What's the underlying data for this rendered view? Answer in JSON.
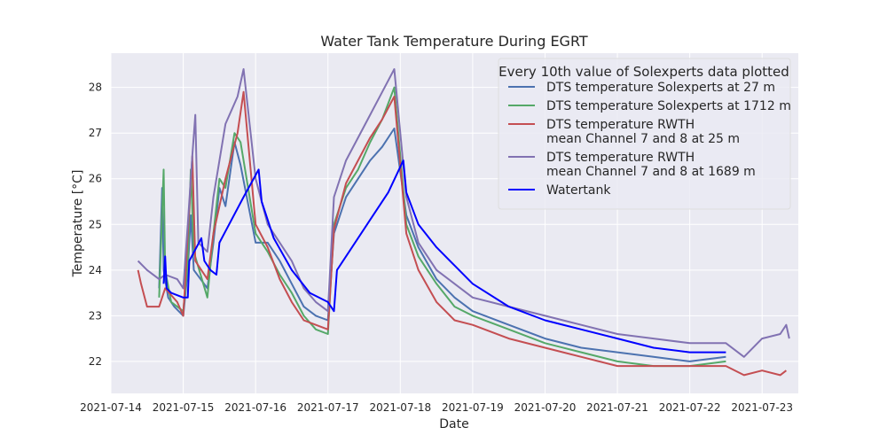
{
  "chart_data": {
    "type": "line",
    "title": "Water Tank Temperature During EGRT",
    "xlabel": "Date",
    "ylabel": "Temperature [°C]",
    "xlim": [
      "2021-07-14 00:00",
      "2021-07-23 12:00"
    ],
    "ylim": [
      21.3,
      28.75
    ],
    "x_ticks": [
      "2021-07-14",
      "2021-07-15",
      "2021-07-16",
      "2021-07-17",
      "2021-07-18",
      "2021-07-19",
      "2021-07-20",
      "2021-07-21",
      "2021-07-22",
      "2021-07-23"
    ],
    "y_ticks": [
      22,
      23,
      24,
      25,
      26,
      27,
      28
    ],
    "grid": true,
    "legend": {
      "title": "Every 10th value of Solexperts data plotted",
      "placement": "top-right"
    },
    "series": [
      {
        "name": "DTS temperature Solexperts at 27 m",
        "color": "#4c72b0",
        "points": [
          [
            "2021-07-14 16:00",
            23.6
          ],
          [
            "2021-07-14 17:00",
            25.8
          ],
          [
            "2021-07-14 17:30",
            24.0
          ],
          [
            "2021-07-14 19:00",
            23.4
          ],
          [
            "2021-07-14 21:00",
            23.2
          ],
          [
            "2021-07-15 00:00",
            23.0
          ],
          [
            "2021-07-15 01:30",
            24.0
          ],
          [
            "2021-07-15 02:30",
            25.2
          ],
          [
            "2021-07-15 03:30",
            24.0
          ],
          [
            "2021-07-15 08:00",
            23.6
          ],
          [
            "2021-07-15 10:00",
            24.6
          ],
          [
            "2021-07-15 12:00",
            25.8
          ],
          [
            "2021-07-15 14:00",
            25.4
          ],
          [
            "2021-07-15 17:00",
            26.8
          ],
          [
            "2021-07-15 19:00",
            26.3
          ],
          [
            "2021-07-16 00:00",
            24.6
          ],
          [
            "2021-07-16 04:00",
            24.6
          ],
          [
            "2021-07-16 08:00",
            24.2
          ],
          [
            "2021-07-16 12:00",
            23.7
          ],
          [
            "2021-07-16 16:00",
            23.2
          ],
          [
            "2021-07-16 20:00",
            23.0
          ],
          [
            "2021-07-17 00:00",
            22.9
          ],
          [
            "2021-07-17 02:00",
            24.8
          ],
          [
            "2021-07-17 06:00",
            25.6
          ],
          [
            "2021-07-17 10:00",
            26.0
          ],
          [
            "2021-07-17 14:00",
            26.4
          ],
          [
            "2021-07-17 18:00",
            26.7
          ],
          [
            "2021-07-17 22:00",
            27.1
          ],
          [
            "2021-07-18 02:00",
            25.2
          ],
          [
            "2021-07-18 06:00",
            24.5
          ],
          [
            "2021-07-18 12:00",
            23.8
          ],
          [
            "2021-07-18 18:00",
            23.4
          ],
          [
            "2021-07-19 00:00",
            23.1
          ],
          [
            "2021-07-19 12:00",
            22.8
          ],
          [
            "2021-07-20 00:00",
            22.5
          ],
          [
            "2021-07-20 12:00",
            22.3
          ],
          [
            "2021-07-21 00:00",
            22.2
          ],
          [
            "2021-07-21 12:00",
            22.1
          ],
          [
            "2021-07-22 00:00",
            22.0
          ],
          [
            "2021-07-22 12:00",
            22.1
          ]
        ]
      },
      {
        "name": "DTS temperature Solexperts at 1712 m",
        "color": "#55a868",
        "points": [
          [
            "2021-07-14 16:00",
            23.4
          ],
          [
            "2021-07-14 17:30",
            26.2
          ],
          [
            "2021-07-14 18:00",
            24.0
          ],
          [
            "2021-07-14 20:00",
            23.3
          ],
          [
            "2021-07-15 00:00",
            23.1
          ],
          [
            "2021-07-15 01:30",
            24.2
          ],
          [
            "2021-07-15 02:30",
            26.2
          ],
          [
            "2021-07-15 03:30",
            24.4
          ],
          [
            "2021-07-15 08:00",
            23.4
          ],
          [
            "2021-07-15 10:00",
            24.8
          ],
          [
            "2021-07-15 12:00",
            26.0
          ],
          [
            "2021-07-15 14:00",
            25.8
          ],
          [
            "2021-07-15 17:00",
            27.0
          ],
          [
            "2021-07-15 19:00",
            26.8
          ],
          [
            "2021-07-16 00:00",
            24.8
          ],
          [
            "2021-07-16 04:00",
            24.4
          ],
          [
            "2021-07-16 08:00",
            23.9
          ],
          [
            "2021-07-16 12:00",
            23.5
          ],
          [
            "2021-07-16 16:00",
            23.0
          ],
          [
            "2021-07-16 20:00",
            22.7
          ],
          [
            "2021-07-17 00:00",
            22.6
          ],
          [
            "2021-07-17 02:00",
            25.0
          ],
          [
            "2021-07-17 06:00",
            25.8
          ],
          [
            "2021-07-17 10:00",
            26.2
          ],
          [
            "2021-07-17 14:00",
            26.8
          ],
          [
            "2021-07-17 18:00",
            27.3
          ],
          [
            "2021-07-17 22:00",
            28.0
          ],
          [
            "2021-07-18 02:00",
            25.0
          ],
          [
            "2021-07-18 06:00",
            24.3
          ],
          [
            "2021-07-18 12:00",
            23.7
          ],
          [
            "2021-07-18 18:00",
            23.2
          ],
          [
            "2021-07-19 00:00",
            23.0
          ],
          [
            "2021-07-19 12:00",
            22.7
          ],
          [
            "2021-07-20 00:00",
            22.4
          ],
          [
            "2021-07-20 12:00",
            22.2
          ],
          [
            "2021-07-21 00:00",
            22.0
          ],
          [
            "2021-07-21 12:00",
            21.9
          ],
          [
            "2021-07-22 00:00",
            21.9
          ],
          [
            "2021-07-22 12:00",
            22.0
          ]
        ]
      },
      {
        "name": "DTS temperature RWTH\nmean Channel 7 and 8 at 25 m",
        "color": "#c44e52",
        "points": [
          [
            "2021-07-14 09:00",
            24.0
          ],
          [
            "2021-07-14 10:00",
            23.7
          ],
          [
            "2021-07-14 12:00",
            23.2
          ],
          [
            "2021-07-14 16:00",
            23.2
          ],
          [
            "2021-07-14 18:00",
            23.6
          ],
          [
            "2021-07-14 22:00",
            23.3
          ],
          [
            "2021-07-15 00:00",
            23.0
          ],
          [
            "2021-07-15 01:30",
            24.8
          ],
          [
            "2021-07-15 03:00",
            26.5
          ],
          [
            "2021-07-15 04:00",
            24.2
          ],
          [
            "2021-07-15 08:00",
            23.8
          ],
          [
            "2021-07-15 10:00",
            24.8
          ],
          [
            "2021-07-15 14:00",
            26.0
          ],
          [
            "2021-07-15 18:00",
            27.0
          ],
          [
            "2021-07-15 20:00",
            27.9
          ],
          [
            "2021-07-16 00:00",
            25.0
          ],
          [
            "2021-07-16 04:00",
            24.5
          ],
          [
            "2021-07-16 08:00",
            23.8
          ],
          [
            "2021-07-16 12:00",
            23.3
          ],
          [
            "2021-07-16 16:00",
            22.9
          ],
          [
            "2021-07-16 20:00",
            22.8
          ],
          [
            "2021-07-17 00:00",
            22.7
          ],
          [
            "2021-07-17 02:00",
            24.9
          ],
          [
            "2021-07-17 06:00",
            25.9
          ],
          [
            "2021-07-17 10:00",
            26.4
          ],
          [
            "2021-07-17 14:00",
            26.9
          ],
          [
            "2021-07-17 18:00",
            27.3
          ],
          [
            "2021-07-17 22:00",
            27.8
          ],
          [
            "2021-07-18 02:00",
            24.8
          ],
          [
            "2021-07-18 06:00",
            24.0
          ],
          [
            "2021-07-18 12:00",
            23.3
          ],
          [
            "2021-07-18 18:00",
            22.9
          ],
          [
            "2021-07-19 00:00",
            22.8
          ],
          [
            "2021-07-19 12:00",
            22.5
          ],
          [
            "2021-07-20 00:00",
            22.3
          ],
          [
            "2021-07-20 12:00",
            22.1
          ],
          [
            "2021-07-21 00:00",
            21.9
          ],
          [
            "2021-07-21 12:00",
            21.9
          ],
          [
            "2021-07-22 00:00",
            21.9
          ],
          [
            "2021-07-22 12:00",
            21.9
          ],
          [
            "2021-07-22 18:00",
            21.7
          ],
          [
            "2021-07-23 00:00",
            21.8
          ],
          [
            "2021-07-23 06:00",
            21.7
          ],
          [
            "2021-07-23 08:00",
            21.8
          ]
        ]
      },
      {
        "name": "DTS temperature RWTH\nmean Channel 7 and 8 at 1689 m",
        "color": "#8172b2",
        "points": [
          [
            "2021-07-14 09:00",
            24.2
          ],
          [
            "2021-07-14 12:00",
            24.0
          ],
          [
            "2021-07-14 16:00",
            23.8
          ],
          [
            "2021-07-14 18:00",
            23.9
          ],
          [
            "2021-07-14 22:00",
            23.8
          ],
          [
            "2021-07-15 00:00",
            23.6
          ],
          [
            "2021-07-15 01:30",
            25.0
          ],
          [
            "2021-07-15 03:00",
            26.5
          ],
          [
            "2021-07-15 04:00",
            27.4
          ],
          [
            "2021-07-15 05:00",
            24.6
          ],
          [
            "2021-07-15 08:00",
            24.4
          ],
          [
            "2021-07-15 10:00",
            25.6
          ],
          [
            "2021-07-15 14:00",
            27.2
          ],
          [
            "2021-07-15 18:00",
            27.8
          ],
          [
            "2021-07-15 20:00",
            28.4
          ],
          [
            "2021-07-16 00:00",
            26.0
          ],
          [
            "2021-07-16 04:00",
            25.0
          ],
          [
            "2021-07-16 08:00",
            24.6
          ],
          [
            "2021-07-16 12:00",
            24.2
          ],
          [
            "2021-07-16 16:00",
            23.6
          ],
          [
            "2021-07-16 20:00",
            23.3
          ],
          [
            "2021-07-17 00:00",
            23.1
          ],
          [
            "2021-07-17 02:00",
            25.6
          ],
          [
            "2021-07-17 06:00",
            26.4
          ],
          [
            "2021-07-17 10:00",
            26.9
          ],
          [
            "2021-07-17 14:00",
            27.4
          ],
          [
            "2021-07-17 18:00",
            27.9
          ],
          [
            "2021-07-17 22:00",
            28.4
          ],
          [
            "2021-07-18 02:00",
            25.6
          ],
          [
            "2021-07-18 06:00",
            24.6
          ],
          [
            "2021-07-18 12:00",
            24.0
          ],
          [
            "2021-07-18 18:00",
            23.7
          ],
          [
            "2021-07-19 00:00",
            23.4
          ],
          [
            "2021-07-19 12:00",
            23.2
          ],
          [
            "2021-07-20 00:00",
            23.0
          ],
          [
            "2021-07-20 12:00",
            22.8
          ],
          [
            "2021-07-21 00:00",
            22.6
          ],
          [
            "2021-07-21 12:00",
            22.5
          ],
          [
            "2021-07-22 00:00",
            22.4
          ],
          [
            "2021-07-22 12:00",
            22.4
          ],
          [
            "2021-07-22 18:00",
            22.1
          ],
          [
            "2021-07-23 00:00",
            22.5
          ],
          [
            "2021-07-23 06:00",
            22.6
          ],
          [
            "2021-07-23 08:00",
            22.8
          ],
          [
            "2021-07-23 09:00",
            22.5
          ]
        ]
      },
      {
        "name": "Watertank",
        "color": "#0000ff",
        "points": [
          [
            "2021-07-14 17:30",
            23.7
          ],
          [
            "2021-07-14 18:00",
            24.3
          ],
          [
            "2021-07-14 18:30",
            23.6
          ],
          [
            "2021-07-14 20:00",
            23.5
          ],
          [
            "2021-07-15 00:00",
            23.4
          ],
          [
            "2021-07-15 01:30",
            23.4
          ],
          [
            "2021-07-15 02:00",
            24.2
          ],
          [
            "2021-07-15 06:00",
            24.7
          ],
          [
            "2021-07-15 07:00",
            24.2
          ],
          [
            "2021-07-15 09:00",
            24.0
          ],
          [
            "2021-07-15 11:00",
            23.9
          ],
          [
            "2021-07-15 12:00",
            24.6
          ],
          [
            "2021-07-15 20:00",
            25.6
          ],
          [
            "2021-07-16 01:00",
            26.2
          ],
          [
            "2021-07-16 02:00",
            25.5
          ],
          [
            "2021-07-16 06:00",
            24.7
          ],
          [
            "2021-07-16 12:00",
            24.0
          ],
          [
            "2021-07-16 18:00",
            23.5
          ],
          [
            "2021-07-17 00:00",
            23.3
          ],
          [
            "2021-07-17 02:00",
            23.1
          ],
          [
            "2021-07-17 03:00",
            24.0
          ],
          [
            "2021-07-17 08:00",
            24.5
          ],
          [
            "2021-07-17 14:00",
            25.1
          ],
          [
            "2021-07-17 20:00",
            25.7
          ],
          [
            "2021-07-18 01:00",
            26.4
          ],
          [
            "2021-07-18 02:00",
            25.7
          ],
          [
            "2021-07-18 06:00",
            25.0
          ],
          [
            "2021-07-18 12:00",
            24.5
          ],
          [
            "2021-07-18 18:00",
            24.1
          ],
          [
            "2021-07-19 00:00",
            23.7
          ],
          [
            "2021-07-19 12:00",
            23.2
          ],
          [
            "2021-07-20 00:00",
            22.9
          ],
          [
            "2021-07-20 12:00",
            22.7
          ],
          [
            "2021-07-21 00:00",
            22.5
          ],
          [
            "2021-07-21 12:00",
            22.3
          ],
          [
            "2021-07-22 00:00",
            22.2
          ],
          [
            "2021-07-22 12:00",
            22.2
          ]
        ]
      }
    ]
  }
}
